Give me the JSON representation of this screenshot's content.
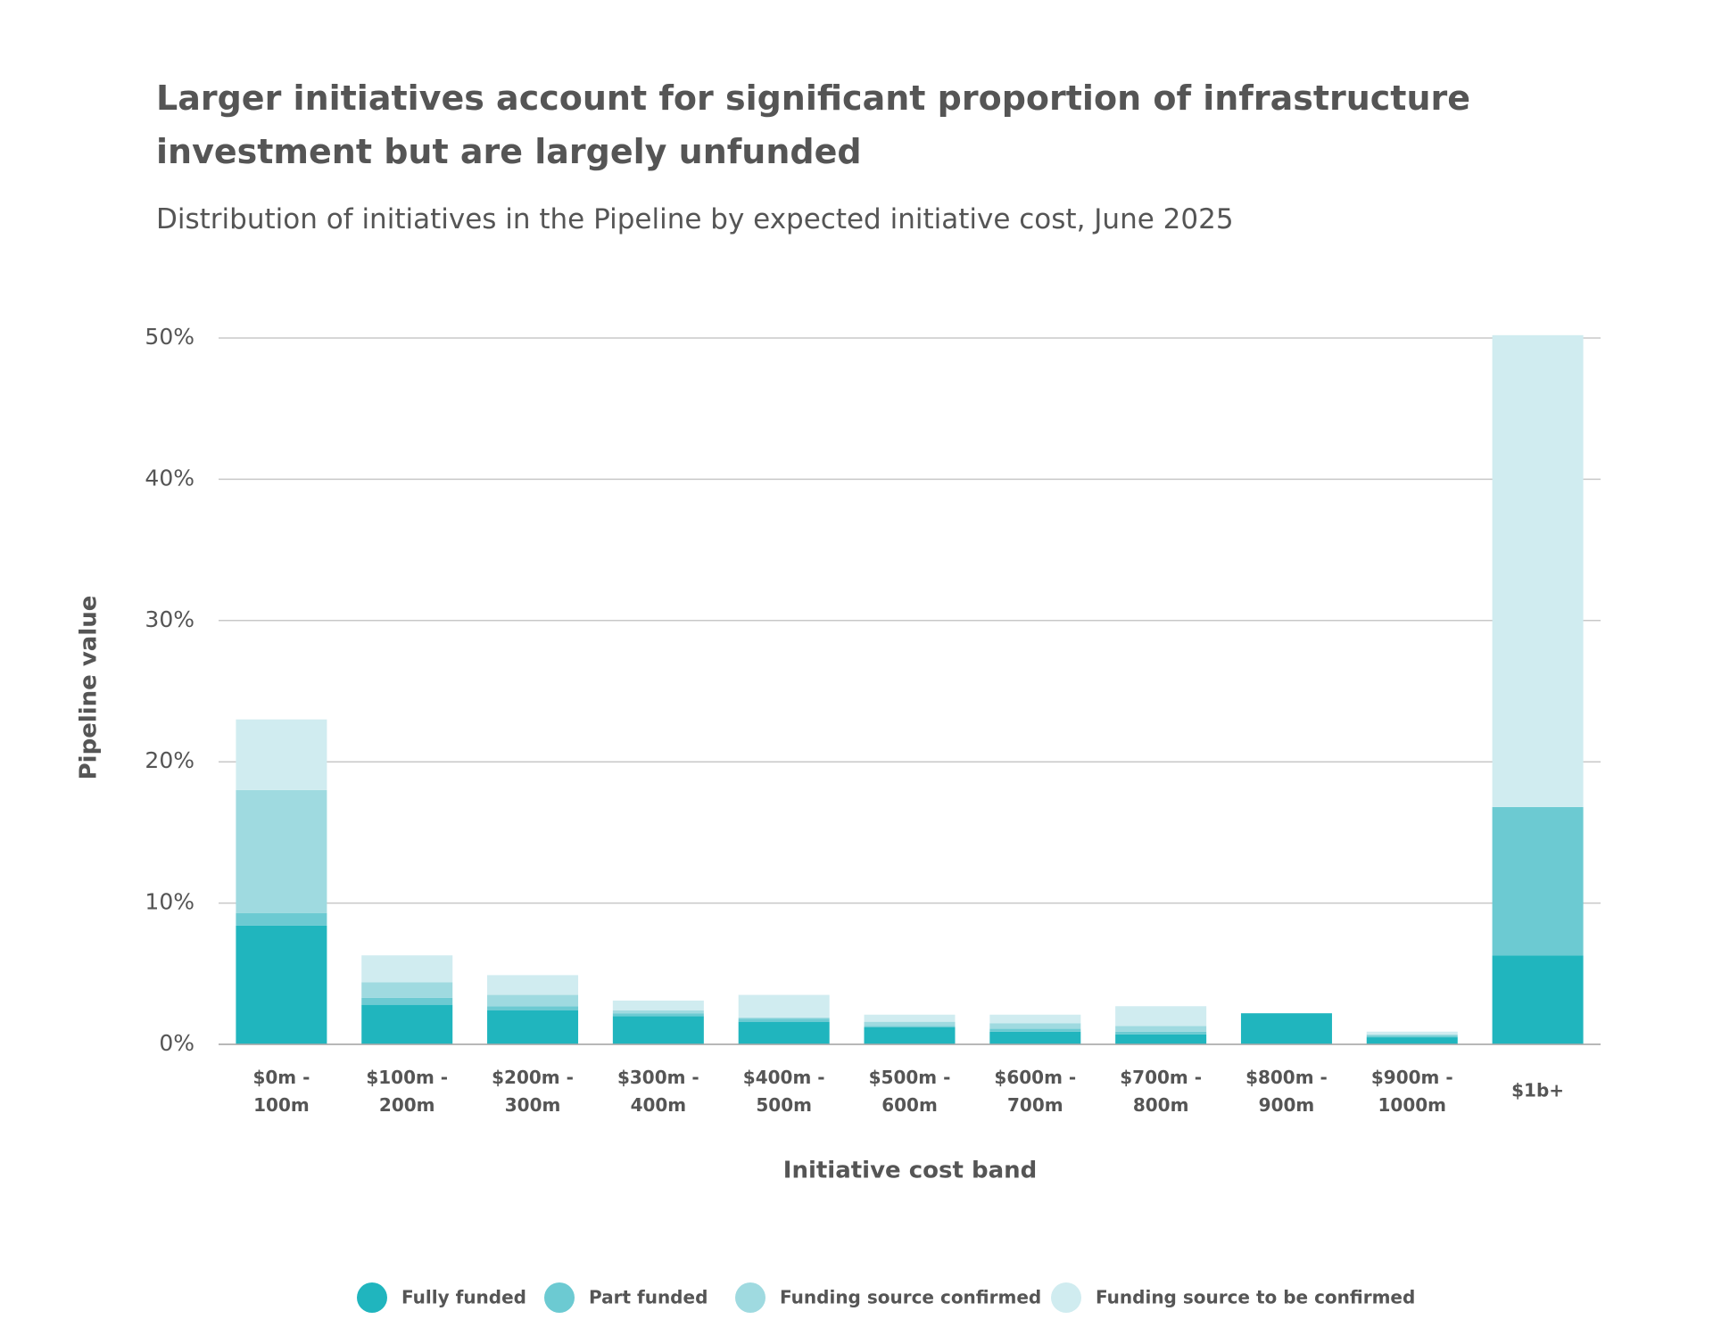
{
  "chart_data": {
    "type": "stacked_bar",
    "title": "Larger initiatives account for significant proportion of infrastructure investment but are largely unfunded",
    "subtitle": "Distribution of initiatives in the Pipeline by expected initiative cost, June 2025",
    "x_label": "Initiative cost band",
    "y_label": "Pipeline value",
    "categories": [
      "$0m - 100m",
      "$100m - 200m",
      "$200m - 300m",
      "$300m - 400m",
      "$400m - 500m",
      "$500m - 600m",
      "$600m - 700m",
      "$700m - 800m",
      "$800m - 900m",
      "$900m - 1000m",
      "$1b+"
    ],
    "series": [
      {
        "name": "Fully funded",
        "color": "#20b5be",
        "values": [
          8.4,
          2.8,
          2.4,
          2.0,
          1.6,
          1.2,
          0.9,
          0.7,
          2.2,
          0.5,
          6.3
        ]
      },
      {
        "name": "Part funded",
        "color": "#6ccad2",
        "values": [
          0.9,
          0.5,
          0.3,
          0.2,
          0.2,
          0.1,
          0.2,
          0.2,
          0,
          0.1,
          10.5
        ]
      },
      {
        "name": "Funding source confirmed",
        "color": "#9fdae0",
        "values": [
          8.7,
          1.1,
          0.8,
          0.2,
          0.1,
          0.3,
          0.4,
          0.4,
          0,
          0.1,
          0
        ]
      },
      {
        "name": "Funding source to be confirmed",
        "color": "#d0ecf0",
        "values": [
          5.0,
          1.9,
          1.4,
          0.7,
          1.6,
          0.5,
          0.6,
          1.4,
          0,
          0.2,
          33.4
        ]
      }
    ],
    "ylim": [
      0,
      50
    ],
    "yticks": [
      {
        "value": 0,
        "label": "0%"
      },
      {
        "value": 10,
        "label": "10%"
      },
      {
        "value": 20,
        "label": "20%"
      },
      {
        "value": 30,
        "label": "30%"
      },
      {
        "value": 40,
        "label": "40%"
      },
      {
        "value": 50,
        "label": "50%"
      }
    ],
    "grid": true,
    "legend": "bottom"
  }
}
